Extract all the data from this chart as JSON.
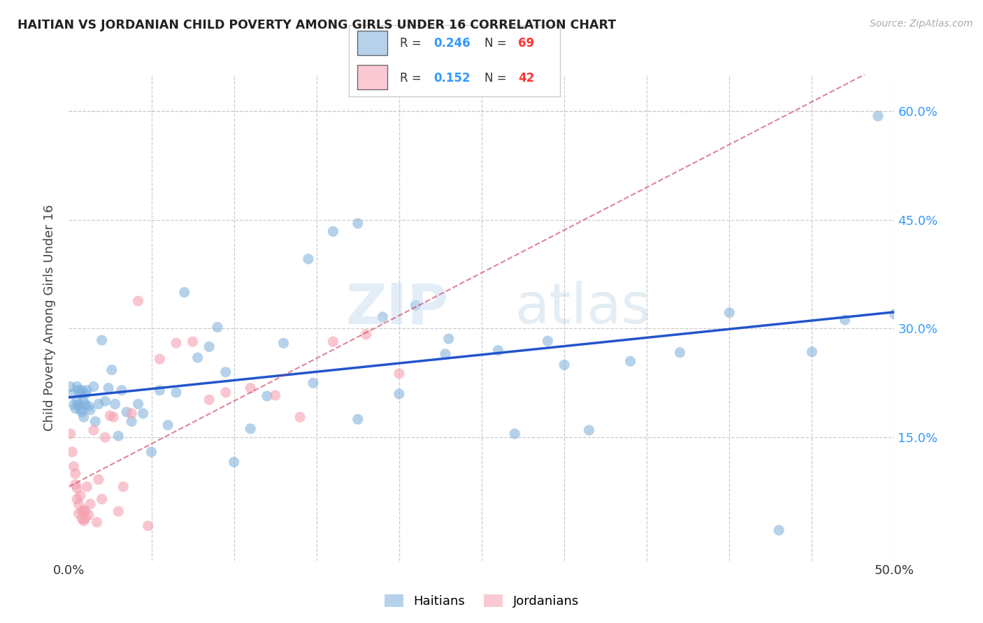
{
  "title": "HAITIAN VS JORDANIAN CHILD POVERTY AMONG GIRLS UNDER 16 CORRELATION CHART",
  "source": "Source: ZipAtlas.com",
  "ylabel": "Child Poverty Among Girls Under 16",
  "xlim": [
    0.0,
    0.5
  ],
  "ylim": [
    -0.02,
    0.65
  ],
  "haitian_color": "#7aaedb",
  "jordanian_color": "#f5a0b0",
  "haitian_R": "0.246",
  "haitian_N": "69",
  "jordanian_R": "0.152",
  "jordanian_N": "42",
  "haitian_line_color": "#2255cc",
  "jordanian_line_color": "#cc3355",
  "ytick_positions": [
    0.15,
    0.3,
    0.45,
    0.6
  ],
  "ytick_labels": [
    "15.0%",
    "30.0%",
    "45.0%",
    "60.0%"
  ],
  "haitian_x": [
    0.001,
    0.002,
    0.003,
    0.004,
    0.005,
    0.005,
    0.006,
    0.006,
    0.007,
    0.007,
    0.008,
    0.008,
    0.009,
    0.009,
    0.01,
    0.01,
    0.011,
    0.012,
    0.013,
    0.015,
    0.016,
    0.018,
    0.02,
    0.022,
    0.024,
    0.026,
    0.028,
    0.03,
    0.032,
    0.035,
    0.038,
    0.042,
    0.045,
    0.05,
    0.055,
    0.06,
    0.065,
    0.07,
    0.078,
    0.085,
    0.09,
    0.095,
    0.1,
    0.11,
    0.12,
    0.13,
    0.145,
    0.16,
    0.175,
    0.19,
    0.21,
    0.23,
    0.26,
    0.29,
    0.315,
    0.34,
    0.37,
    0.4,
    0.43,
    0.45,
    0.47,
    0.49,
    0.5,
    0.148,
    0.175,
    0.2,
    0.228,
    0.27,
    0.3
  ],
  "haitian_y": [
    0.22,
    0.21,
    0.195,
    0.19,
    0.22,
    0.2,
    0.215,
    0.195,
    0.21,
    0.188,
    0.215,
    0.185,
    0.2,
    0.178,
    0.195,
    0.21,
    0.215,
    0.193,
    0.188,
    0.22,
    0.172,
    0.196,
    0.284,
    0.2,
    0.218,
    0.243,
    0.196,
    0.152,
    0.215,
    0.185,
    0.172,
    0.196,
    0.183,
    0.13,
    0.215,
    0.167,
    0.212,
    0.35,
    0.26,
    0.275,
    0.302,
    0.24,
    0.116,
    0.162,
    0.207,
    0.28,
    0.396,
    0.434,
    0.445,
    0.316,
    0.332,
    0.286,
    0.27,
    0.283,
    0.16,
    0.255,
    0.267,
    0.322,
    0.022,
    0.268,
    0.312,
    0.593,
    0.32,
    0.225,
    0.175,
    0.21,
    0.265,
    0.155,
    0.25
  ],
  "jordanian_x": [
    0.001,
    0.002,
    0.003,
    0.004,
    0.004,
    0.005,
    0.005,
    0.006,
    0.006,
    0.007,
    0.008,
    0.008,
    0.009,
    0.009,
    0.01,
    0.01,
    0.011,
    0.012,
    0.013,
    0.015,
    0.017,
    0.018,
    0.02,
    0.022,
    0.025,
    0.027,
    0.03,
    0.033,
    0.038,
    0.042,
    0.048,
    0.055,
    0.065,
    0.075,
    0.085,
    0.095,
    0.11,
    0.125,
    0.14,
    0.16,
    0.18,
    0.2
  ],
  "jordanian_y": [
    0.155,
    0.13,
    0.11,
    0.1,
    0.085,
    0.065,
    0.08,
    0.058,
    0.045,
    0.07,
    0.048,
    0.038,
    0.05,
    0.035,
    0.048,
    0.038,
    0.082,
    0.043,
    0.058,
    0.16,
    0.033,
    0.092,
    0.065,
    0.15,
    0.18,
    0.178,
    0.048,
    0.082,
    0.183,
    0.338,
    0.028,
    0.258,
    0.28,
    0.282,
    0.202,
    0.212,
    0.218,
    0.208,
    0.178,
    0.282,
    0.292,
    0.238
  ]
}
